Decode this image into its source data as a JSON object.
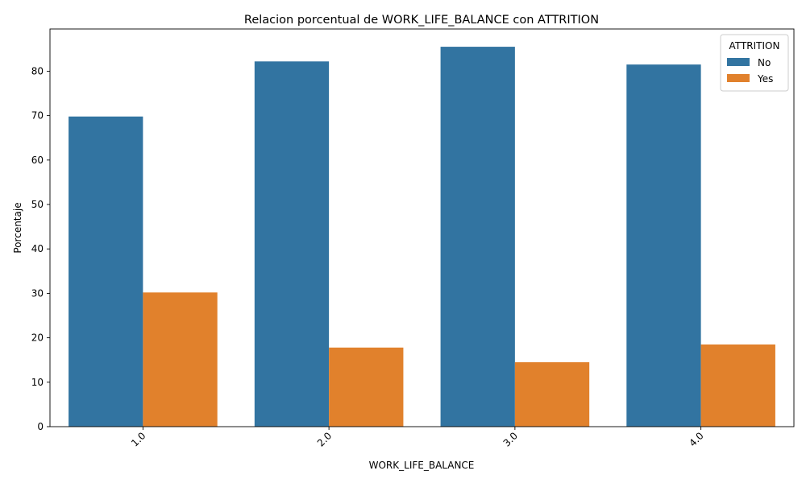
{
  "chart_data": {
    "type": "bar",
    "title": "Relacion porcentual de WORK_LIFE_BALANCE con ATTRITION",
    "xlabel": "WORK_LIFE_BALANCE",
    "ylabel": "Porcentaje",
    "categories": [
      "1.0",
      "2.0",
      "3.0",
      "4.0"
    ],
    "ylim": [
      0,
      89.5
    ],
    "yticks": [
      0,
      10,
      20,
      30,
      40,
      50,
      60,
      70,
      80
    ],
    "grid": false,
    "legend": {
      "title": "ATTRITION",
      "placement": "top-right"
    },
    "series": [
      {
        "name": "No",
        "color": "#3274a1",
        "values": [
          69.8,
          82.2,
          85.5,
          81.5
        ]
      },
      {
        "name": "Yes",
        "color": "#e1812c",
        "values": [
          30.2,
          17.8,
          14.5,
          18.5
        ]
      }
    ]
  }
}
